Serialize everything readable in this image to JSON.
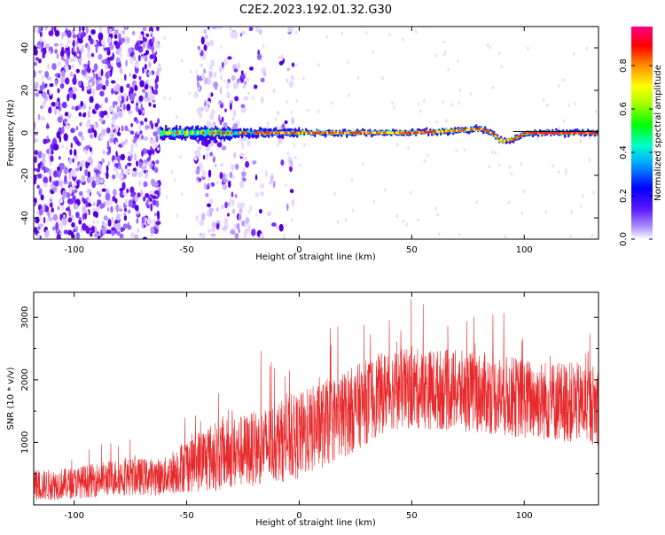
{
  "title": "C2E2.2023.192.01.32.G30",
  "chart_data": [
    {
      "type": "heatmap",
      "xlabel": "Height of straight line (km)",
      "ylabel": "Frequency (Hz)",
      "xlim": [
        -118,
        133
      ],
      "ylim": [
        -50,
        50
      ],
      "xticks": [
        -100,
        -50,
        0,
        50,
        100
      ],
      "yticks": [
        -40,
        -20,
        0,
        20,
        40
      ],
      "colorbar": {
        "label": "Normalized spectral amplitude",
        "range": [
          0.0,
          0.98
        ],
        "ticks": [
          0.0,
          0.2,
          0.4,
          0.6,
          0.8
        ]
      },
      "ridge": {
        "description_x_from": -62,
        "frequency_centerline": [
          {
            "x": -62,
            "y": 0
          },
          {
            "x": -40,
            "y": 0
          },
          {
            "x": 0,
            "y": 0
          },
          {
            "x": 50,
            "y": 0
          },
          {
            "x": 70,
            "y": 1
          },
          {
            "x": 80,
            "y": 2
          },
          {
            "x": 85,
            "y": 0
          },
          {
            "x": 90,
            "y": -4
          },
          {
            "x": 95,
            "y": -3
          },
          {
            "x": 100,
            "y": 0
          },
          {
            "x": 133,
            "y": 0
          }
        ]
      },
      "noise_regions": [
        {
          "x_from": -118,
          "x_to": -62,
          "density": "high"
        },
        {
          "x_from": -46,
          "x_to": -24,
          "density": "medium"
        },
        {
          "x_from": -24,
          "x_to": -2,
          "density": "low"
        }
      ]
    },
    {
      "type": "line",
      "xlabel": "Height of straight line (km)",
      "ylabel": "SNR (10 * v/v)",
      "xlim": [
        -118,
        133
      ],
      "ylim": [
        0,
        3400
      ],
      "xticks": [
        -100,
        -50,
        0,
        50,
        100
      ],
      "yticks": [
        1000,
        2000,
        3000
      ],
      "series_color": "#e8282a",
      "envelope": [
        {
          "x": -118,
          "mean": 300,
          "spread": 250
        },
        {
          "x": -100,
          "mean": 350,
          "spread": 250
        },
        {
          "x": -80,
          "mean": 450,
          "spread": 300
        },
        {
          "x": -60,
          "mean": 450,
          "spread": 300
        },
        {
          "x": -50,
          "mean": 650,
          "spread": 450
        },
        {
          "x": -40,
          "mean": 750,
          "spread": 550
        },
        {
          "x": -20,
          "mean": 900,
          "spread": 600
        },
        {
          "x": 0,
          "mean": 1100,
          "spread": 700
        },
        {
          "x": 20,
          "mean": 1450,
          "spread": 700
        },
        {
          "x": 40,
          "mean": 1850,
          "spread": 650
        },
        {
          "x": 60,
          "mean": 1850,
          "spread": 650
        },
        {
          "x": 80,
          "mean": 1800,
          "spread": 650
        },
        {
          "x": 100,
          "mean": 1700,
          "spread": 650
        },
        {
          "x": 133,
          "mean": 1600,
          "spread": 650
        }
      ]
    }
  ]
}
